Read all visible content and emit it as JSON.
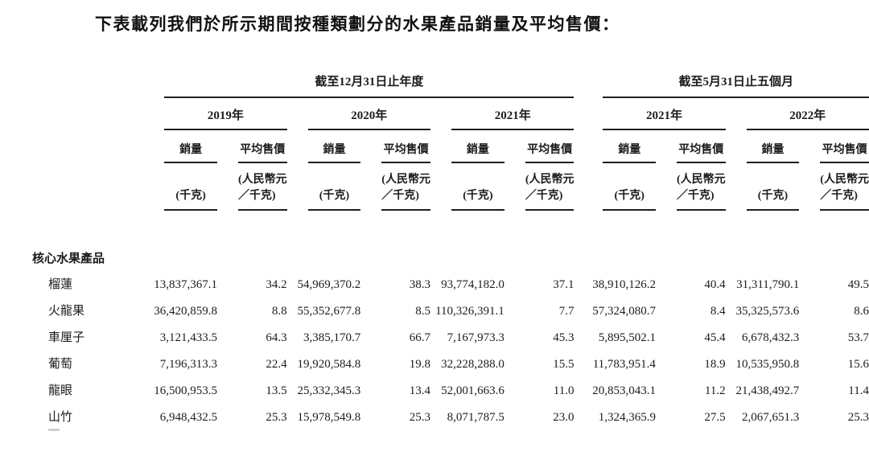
{
  "title": "下表載列我們於所示期間按種類劃分的水果產品銷量及平均售價：",
  "table": {
    "groups": [
      {
        "label": "截至12月31日止年度",
        "years": [
          "2019年",
          "2020年",
          "2021年"
        ]
      },
      {
        "label": "截至5月31日止五個月",
        "years": [
          "2021年",
          "2022年"
        ]
      }
    ],
    "col_headers": {
      "volume": "銷量",
      "asp": "平均售價"
    },
    "units": {
      "volume_line2": "(千克)",
      "asp_line1": "(人民幣元",
      "asp_line2": "／千克)"
    },
    "section_header": "核心水果產品",
    "rows": [
      {
        "label": "榴蓮",
        "values": [
          "13,837,367.1",
          "34.2",
          "54,969,370.2",
          "38.3",
          "93,774,182.0",
          "37.1",
          "38,910,126.2",
          "40.4",
          "31,311,790.1",
          "49.5"
        ]
      },
      {
        "label": "火龍果",
        "values": [
          "36,420,859.8",
          "8.8",
          "55,352,677.8",
          "8.5",
          "110,326,391.1",
          "7.7",
          "57,324,080.7",
          "8.4",
          "35,325,573.6",
          "8.6"
        ]
      },
      {
        "label": "車厘子",
        "values": [
          "3,121,433.5",
          "64.3",
          "3,385,170.7",
          "66.7",
          "7,167,973.3",
          "45.3",
          "5,895,502.1",
          "45.4",
          "6,678,432.3",
          "53.7"
        ]
      },
      {
        "label": "葡萄",
        "values": [
          "7,196,313.3",
          "22.4",
          "19,920,584.8",
          "19.8",
          "32,228,288.0",
          "15.5",
          "11,783,951.4",
          "18.9",
          "10,535,950.8",
          "15.6"
        ]
      },
      {
        "label": "龍眼",
        "values": [
          "16,500,953.5",
          "13.5",
          "25,332,345.3",
          "13.4",
          "52,001,663.6",
          "11.0",
          "20,853,043.1",
          "11.2",
          "21,438,492.7",
          "11.4"
        ]
      },
      {
        "label": "山竹",
        "values": [
          "6,948,432.5",
          "25.3",
          "15,978,549.8",
          "25.3",
          "8,071,787.5",
          "23.0",
          "1,324,365.9",
          "27.5",
          "2,067,651.3",
          "25.3"
        ]
      }
    ]
  }
}
